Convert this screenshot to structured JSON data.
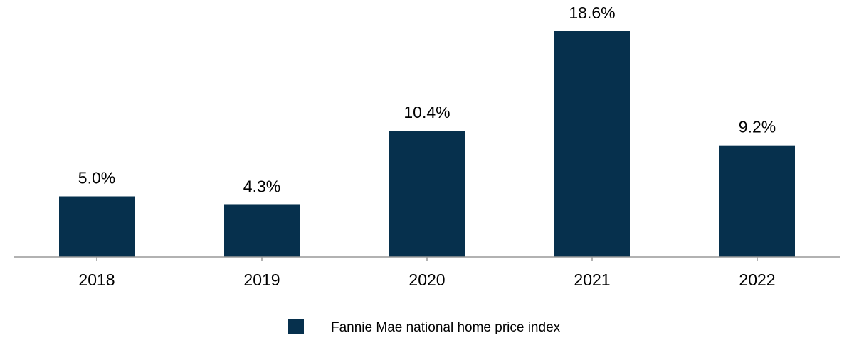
{
  "chart_data": {
    "type": "bar",
    "categories": [
      "2018",
      "2019",
      "2020",
      "2021",
      "2022"
    ],
    "series": [
      {
        "name": "Fannie Mae national home price index",
        "values": [
          5.0,
          4.3,
          10.4,
          18.6,
          9.2
        ],
        "value_labels": [
          "5.0%",
          "4.3%",
          "10.4%",
          "18.6%",
          "9.2%"
        ],
        "color": "#06304d"
      }
    ],
    "title": "",
    "xlabel": "",
    "ylabel": "",
    "ylim": [
      0,
      20
    ],
    "grid": false,
    "legend_position": "bottom-center",
    "axis_color": "#999999"
  }
}
